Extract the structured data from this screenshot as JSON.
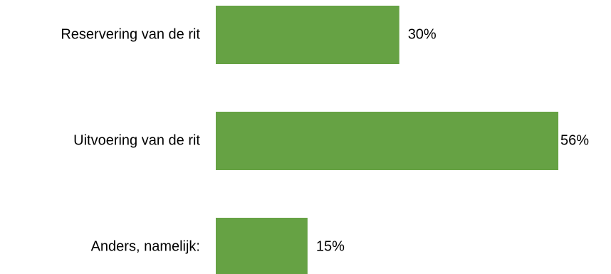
{
  "chart_data": {
    "type": "bar",
    "orientation": "horizontal",
    "categories": [
      "Reservering van de rit",
      "Uitvoering van de rit",
      "Anders, namelijk:"
    ],
    "values": [
      30,
      56,
      15
    ],
    "value_labels": [
      "30%",
      "56%",
      "15%"
    ],
    "unit": "%",
    "bar_color": "#66A244",
    "grid": false,
    "legend": "none",
    "title": "",
    "xlabel": "",
    "ylabel": ""
  }
}
